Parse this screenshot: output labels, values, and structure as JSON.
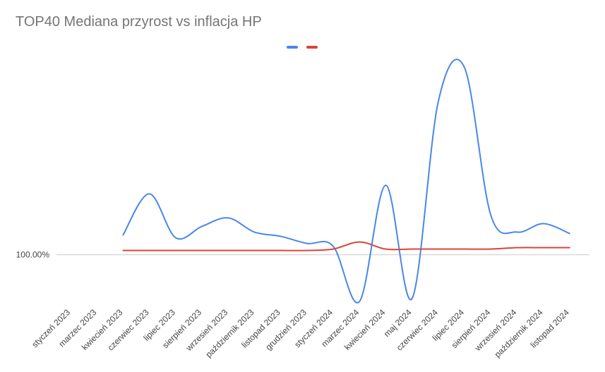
{
  "chart_data": {
    "type": "line",
    "title": "TOP40 Mediana przyrost vs inflacja HP",
    "xlabel": "",
    "ylabel": "",
    "categories": [
      "styczeń 2023",
      "marzec 2023",
      "kwiecień 2023",
      "czerwiec 2023",
      "lipiec 2023",
      "sierpień 2023",
      "wrzesień 2023",
      "październik 2023",
      "listopad 2023",
      "grudzień 2023",
      "styczeń 2024",
      "marzec 2024",
      "kwiecień 2024",
      "maj 2024",
      "czerwiec 2024",
      "lipiec 2024",
      "sierpień 2024",
      "wrzesień 2024",
      "październik 2024",
      "listopad 2024"
    ],
    "y_tick_labels": [
      "100.00%"
    ],
    "y_tick_values": [
      100
    ],
    "ylim": [
      96.6,
      113.2
    ],
    "grid": false,
    "legend": "top",
    "series": [
      {
        "color": "#4a86e8",
        "values": [
          null,
          null,
          101.4,
          104.3,
          101.2,
          102.0,
          102.6,
          101.6,
          101.3,
          100.8,
          100.6,
          96.7,
          104.9,
          96.9,
          110.8,
          113.2,
          102.8,
          101.6,
          102.2,
          101.5
        ]
      },
      {
        "color": "#db4437",
        "values": [
          null,
          null,
          100.3,
          100.3,
          100.3,
          100.3,
          100.3,
          100.3,
          100.3,
          100.3,
          100.4,
          100.9,
          100.4,
          100.4,
          100.4,
          100.4,
          100.4,
          100.5,
          100.5,
          100.5
        ]
      }
    ]
  }
}
